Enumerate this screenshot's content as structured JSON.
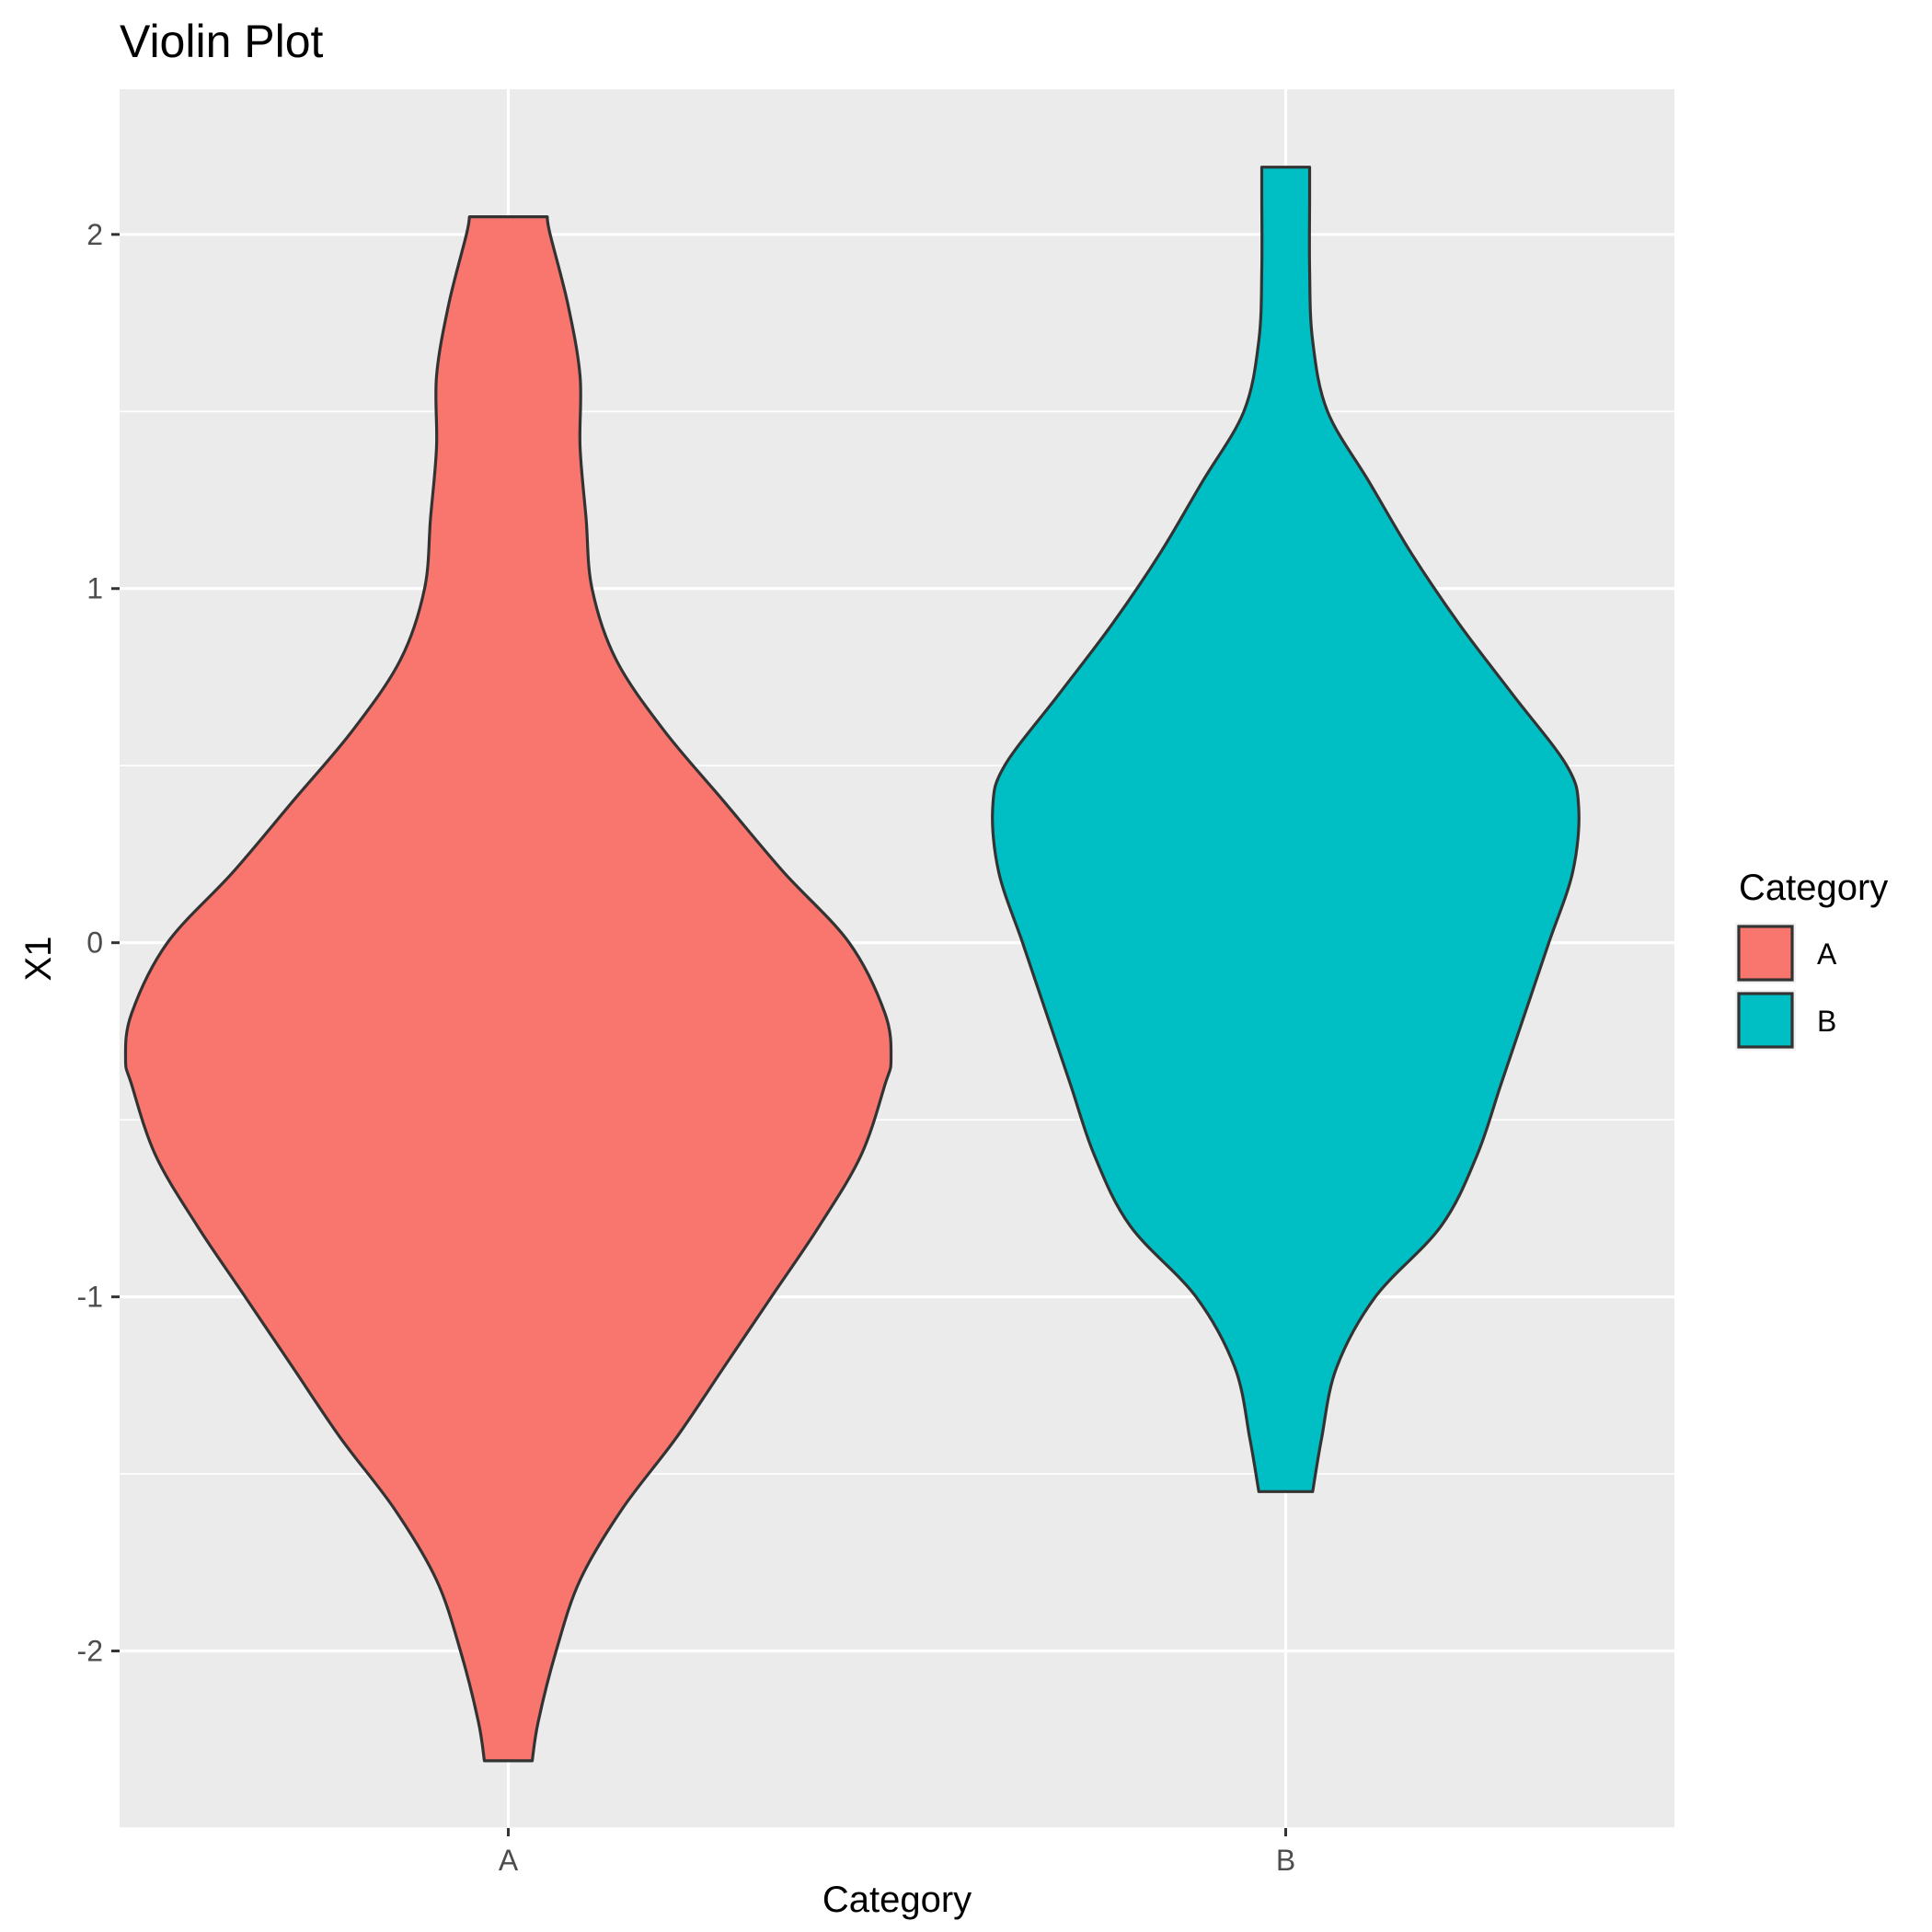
{
  "chart_data": {
    "type": "violin",
    "title": "Violin Plot",
    "xlabel": "Category",
    "ylabel": "X1",
    "categories": [
      "A",
      "B"
    ],
    "yticks": [
      -2,
      -1,
      0,
      1,
      2
    ],
    "ylim": [
      -2.5,
      2.41
    ],
    "grid": true,
    "legend": {
      "title": "Category",
      "placement": "right",
      "entries": [
        {
          "label": "A",
          "color": "#F8766D"
        },
        {
          "label": "B",
          "color": "#00BFC4"
        }
      ]
    },
    "series": [
      {
        "category": "A",
        "color": "#F8766D",
        "min": -2.31,
        "max": 2.05,
        "profile": [
          [
            -2.31,
            0.04
          ],
          [
            -2.2,
            0.05
          ],
          [
            -2.0,
            0.08
          ],
          [
            -1.8,
            0.12
          ],
          [
            -1.6,
            0.19
          ],
          [
            -1.4,
            0.28
          ],
          [
            -1.2,
            0.36
          ],
          [
            -1.0,
            0.44
          ],
          [
            -0.8,
            0.52
          ],
          [
            -0.6,
            0.59
          ],
          [
            -0.4,
            0.63
          ],
          [
            -0.33,
            0.64
          ],
          [
            -0.2,
            0.63
          ],
          [
            0.0,
            0.57
          ],
          [
            0.2,
            0.46
          ],
          [
            0.4,
            0.36
          ],
          [
            0.6,
            0.26
          ],
          [
            0.8,
            0.18
          ],
          [
            1.0,
            0.14
          ],
          [
            1.2,
            0.13
          ],
          [
            1.4,
            0.12
          ],
          [
            1.6,
            0.12
          ],
          [
            1.8,
            0.1
          ],
          [
            2.0,
            0.07
          ],
          [
            2.05,
            0.065
          ]
        ]
      },
      {
        "category": "B",
        "color": "#00BFC4",
        "min": -1.55,
        "max": 2.19,
        "profile": [
          [
            -1.55,
            0.045
          ],
          [
            -1.4,
            0.06
          ],
          [
            -1.2,
            0.085
          ],
          [
            -1.0,
            0.15
          ],
          [
            -0.8,
            0.26
          ],
          [
            -0.6,
            0.32
          ],
          [
            -0.4,
            0.36
          ],
          [
            -0.2,
            0.4
          ],
          [
            0.0,
            0.44
          ],
          [
            0.2,
            0.48
          ],
          [
            0.38,
            0.49
          ],
          [
            0.5,
            0.47
          ],
          [
            0.7,
            0.38
          ],
          [
            0.9,
            0.29
          ],
          [
            1.1,
            0.21
          ],
          [
            1.3,
            0.14
          ],
          [
            1.5,
            0.07
          ],
          [
            1.7,
            0.045
          ],
          [
            1.9,
            0.04
          ],
          [
            2.1,
            0.04
          ],
          [
            2.19,
            0.04
          ]
        ]
      }
    ]
  }
}
